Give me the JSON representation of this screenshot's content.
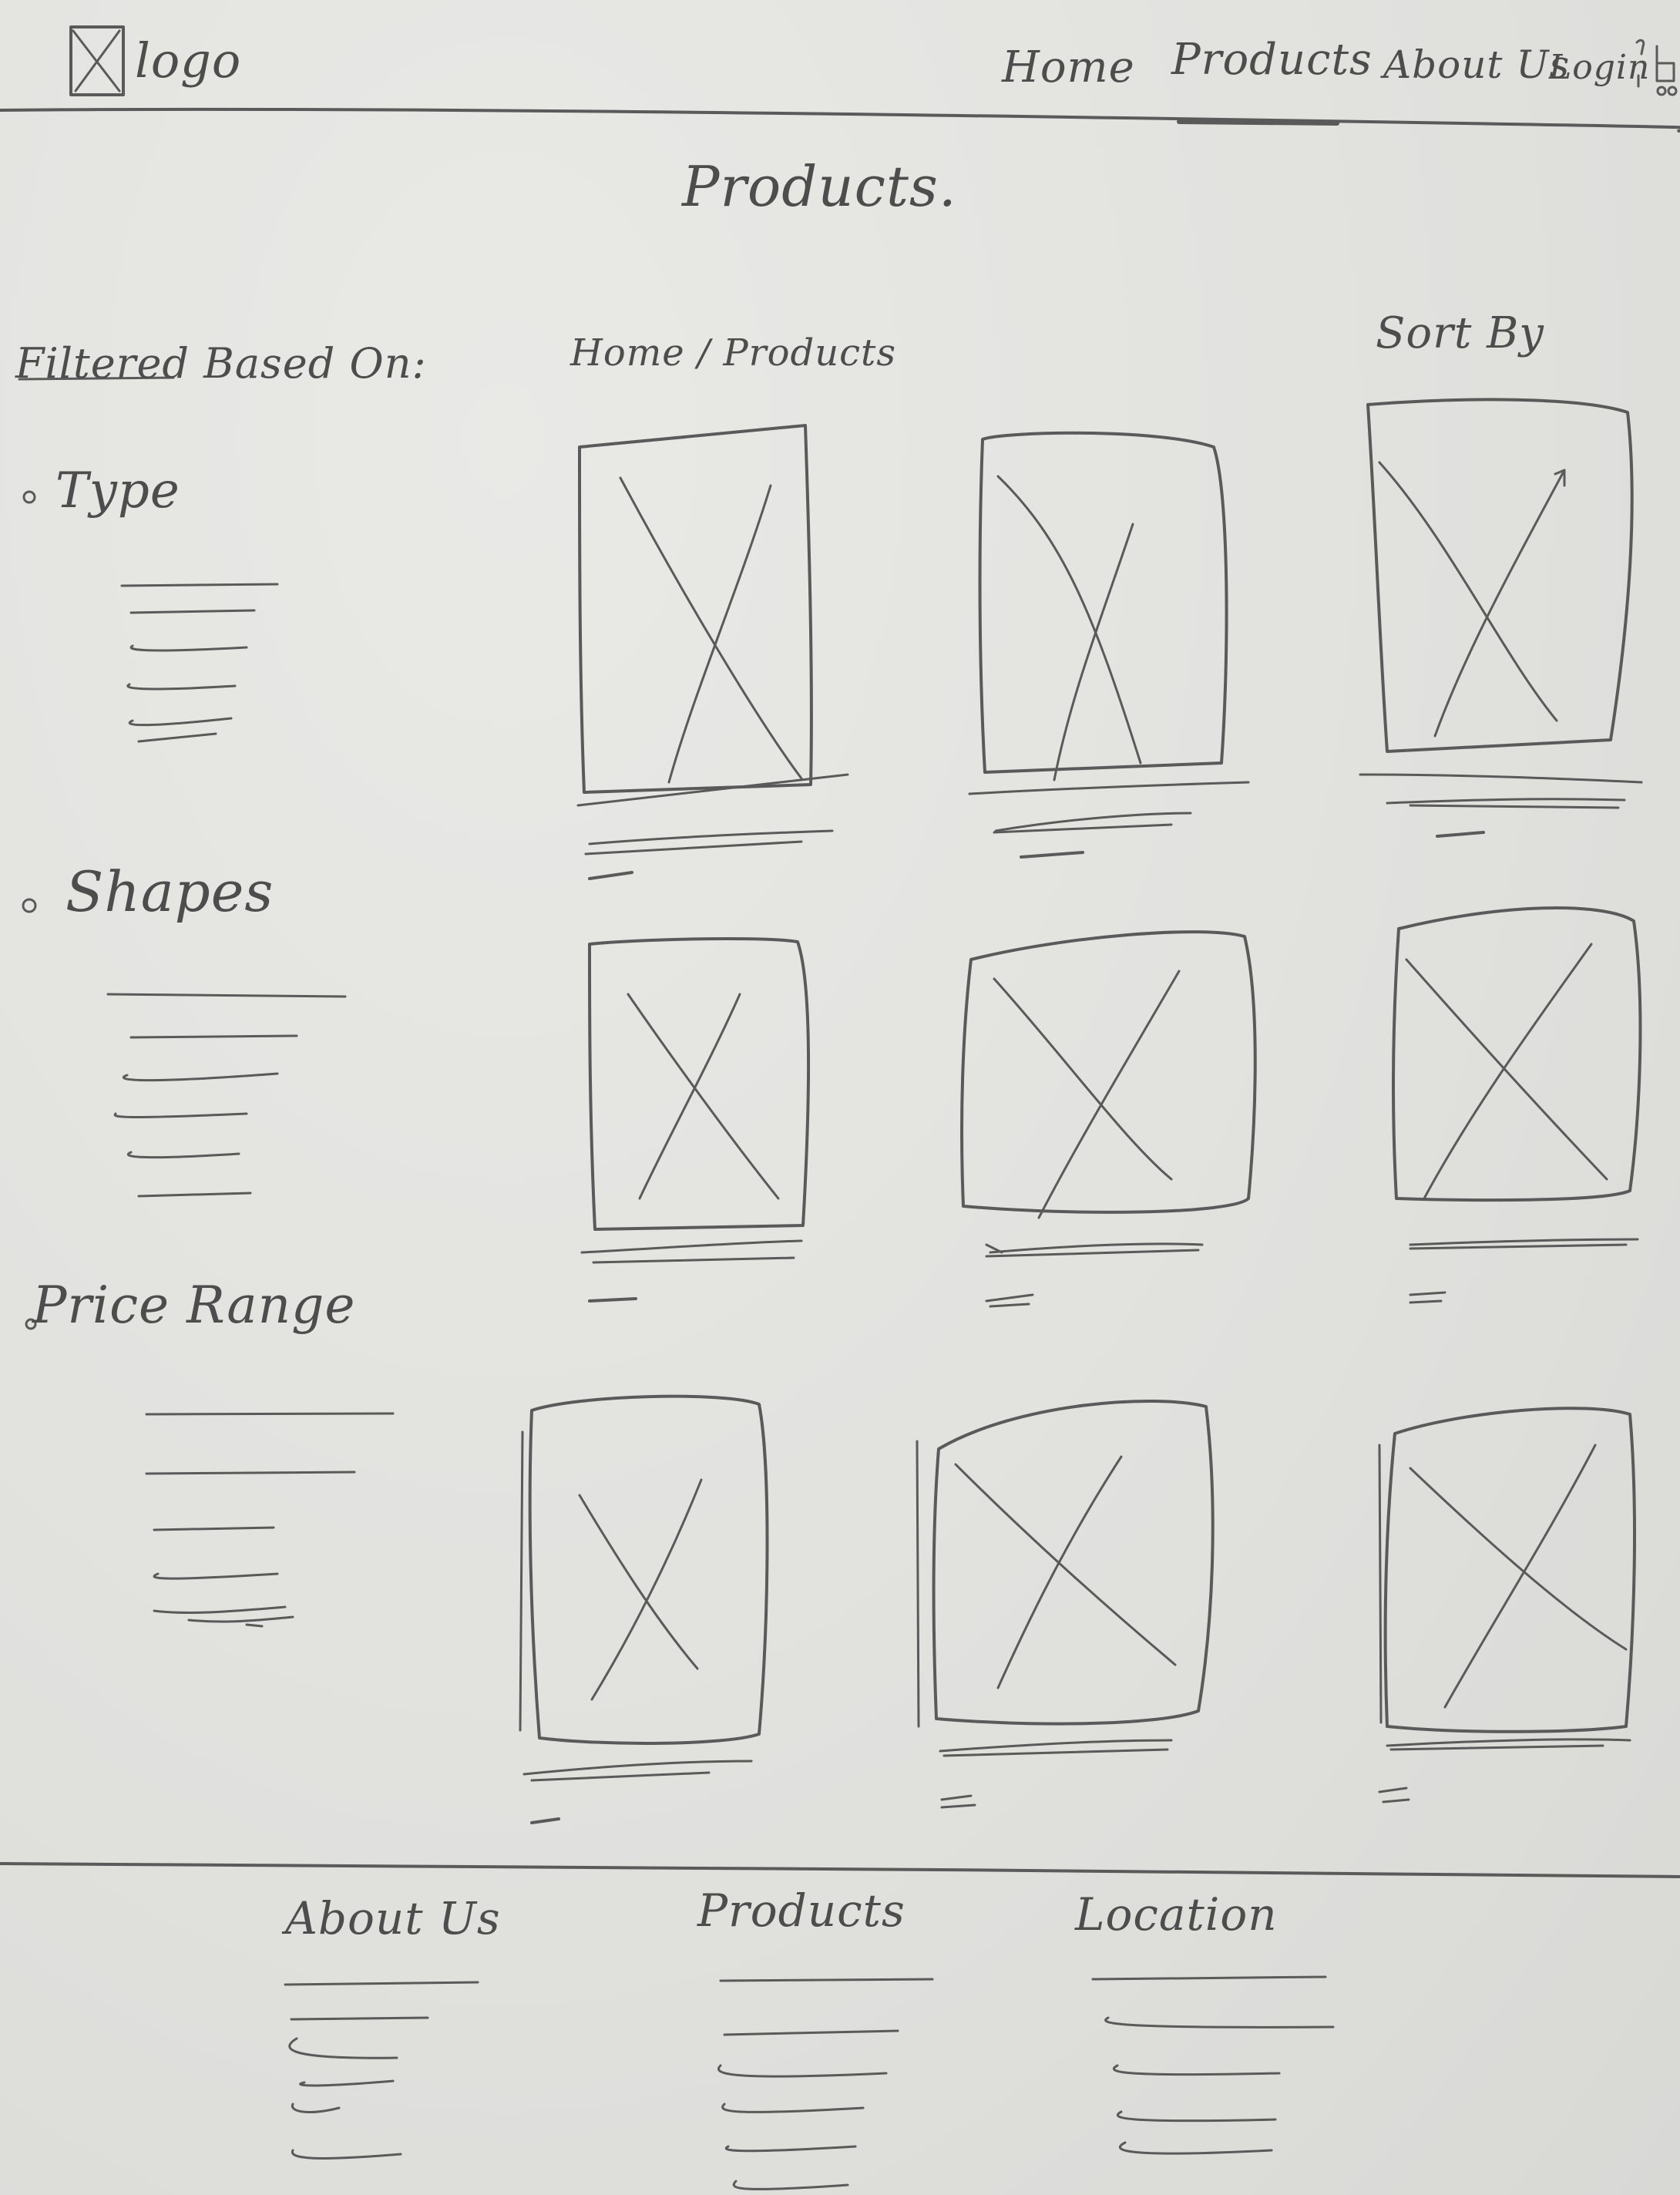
{
  "header": {
    "logo_label": "logo",
    "nav": {
      "home": "Home",
      "products": "Products",
      "about": "About Us",
      "login": "Login"
    }
  },
  "main": {
    "title": "Products.",
    "breadcrumb": "Home / Products",
    "sort_label": "Sort By"
  },
  "filters": {
    "heading": "Filtered Based On:",
    "groups": [
      {
        "label": "Type"
      },
      {
        "label": "Shapes"
      },
      {
        "label": "Price Range"
      }
    ]
  },
  "footer": {
    "columns": [
      {
        "label": "About Us"
      },
      {
        "label": "Products"
      },
      {
        "label": "Location"
      }
    ]
  }
}
